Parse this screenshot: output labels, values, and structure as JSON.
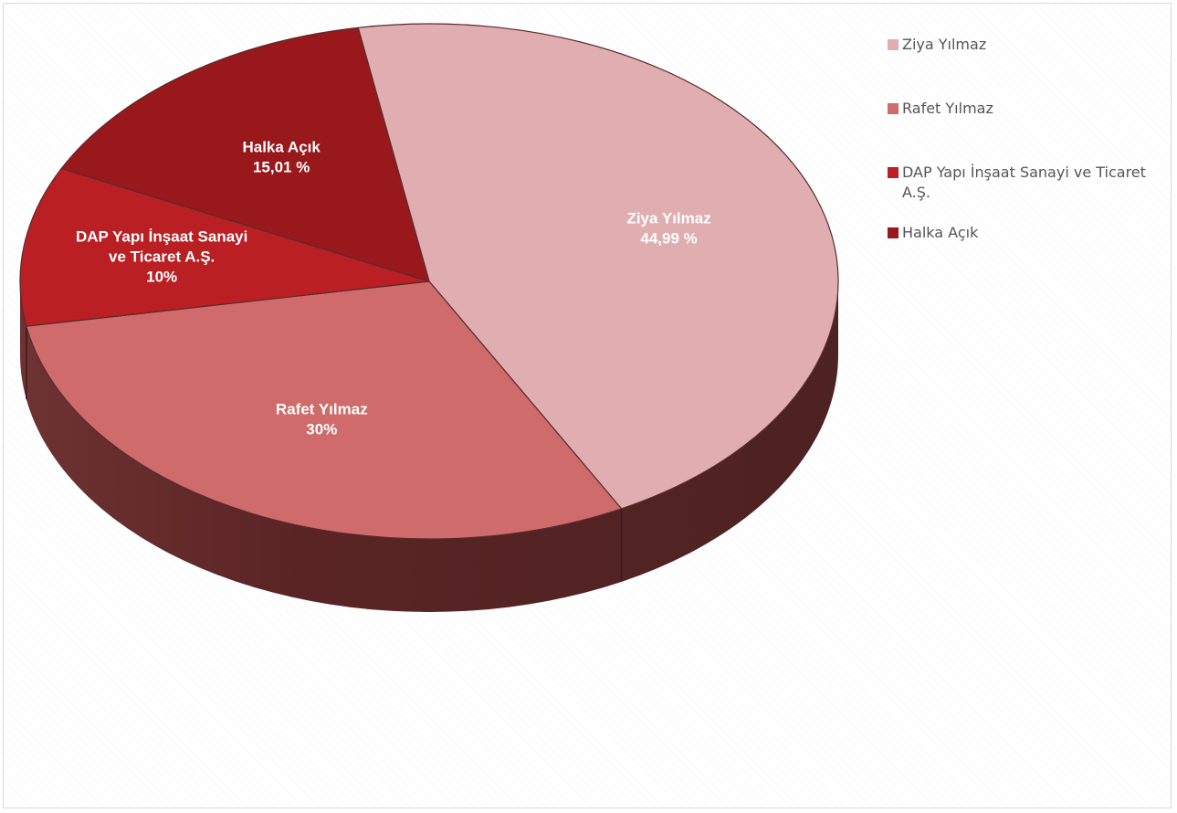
{
  "chart_data": {
    "type": "pie",
    "title": "",
    "slices": [
      {
        "name": "Ziya Yılmaz",
        "value": 44.99,
        "label": "Ziya Yılmaz",
        "pct_label": "44,99 %",
        "color": "#e0aeb0"
      },
      {
        "name": "Rafet Yılmaz",
        "value": 30,
        "label": "Rafet Yılmaz",
        "pct_label": "30%",
        "color": "#cf6b6b"
      },
      {
        "name": "DAP Yapı İnşaat Sanayi ve Ticaret A.Ş.",
        "value": 10,
        "label_lines": [
          "DAP Yapı İnşaat Sanayi",
          "ve Ticaret A.Ş."
        ],
        "pct_label": "10%",
        "color": "#b91f23"
      },
      {
        "name": "Halka Açık",
        "value": 15.01,
        "label": "Halka Açık",
        "pct_label": "15,01 %",
        "color": "#99181c"
      }
    ],
    "legend_position": "right",
    "style": "3d-pie"
  },
  "legend": {
    "items": [
      {
        "label": "Ziya Yılmaz",
        "color": "#e0aeb0"
      },
      {
        "label": "Rafet Yılmaz",
        "color": "#cf6b6b"
      },
      {
        "label": "DAP Yapı İnşaat Sanayi ve Ticaret A.Ş.",
        "color": "#b91f23"
      },
      {
        "label": "Halka Açık",
        "color": "#99181c"
      }
    ]
  }
}
